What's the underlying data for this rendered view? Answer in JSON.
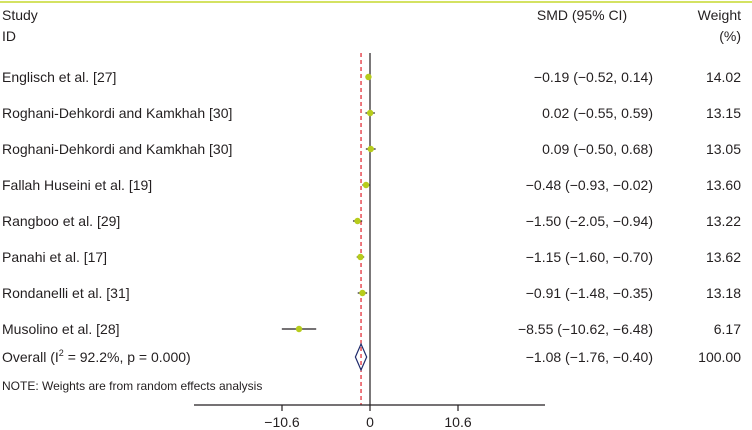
{
  "chart_data": {
    "type": "forest",
    "headers": {
      "study_line1": "Study",
      "study_line2": "ID",
      "effect": "SMD (95% CI)",
      "weight_line1": "Weight",
      "weight_line2": "(%)"
    },
    "studies": [
      {
        "label": "Englisch et al. [27]",
        "smd": -0.19,
        "lo": -0.52,
        "hi": 0.14,
        "ci_text": "−0.19 (−0.52, 0.14)",
        "weight": "14.02"
      },
      {
        "label": "Roghani-Dehkordi and Kamkhah [30]",
        "smd": 0.02,
        "lo": -0.55,
        "hi": 0.59,
        "ci_text": "0.02 (−0.55, 0.59)",
        "weight": "13.15"
      },
      {
        "label": "Roghani-Dehkordi and Kamkhah [30]",
        "smd": 0.09,
        "lo": -0.5,
        "hi": 0.68,
        "ci_text": "0.09 (−0.50, 0.68)",
        "weight": "13.05"
      },
      {
        "label": "Fallah Huseini et al. [19]",
        "smd": -0.48,
        "lo": -0.93,
        "hi": -0.02,
        "ci_text": "−0.48 (−0.93, −0.02)",
        "weight": "13.60"
      },
      {
        "label": "Rangboo et al. [29]",
        "smd": -1.5,
        "lo": -2.05,
        "hi": -0.94,
        "ci_text": "−1.50 (−2.05, −0.94)",
        "weight": "13.22"
      },
      {
        "label": "Panahi et al. [17]",
        "smd": -1.15,
        "lo": -1.6,
        "hi": -0.7,
        "ci_text": "−1.15 (−1.60, −0.70)",
        "weight": "13.62"
      },
      {
        "label": "Rondanelli et al. [31]",
        "smd": -0.91,
        "lo": -1.48,
        "hi": -0.35,
        "ci_text": "−0.91 (−1.48, −0.35)",
        "weight": "13.18"
      },
      {
        "label": "Musolino et al. [28]",
        "smd": -8.55,
        "lo": -10.62,
        "hi": -6.48,
        "ci_text": "−8.55 (−10.62, −6.48)",
        "weight": "6.17"
      }
    ],
    "overall": {
      "label_prefix": "Overall (I",
      "label_sup": "2",
      "label_suffix": " = 92.2%, p = 0.000)",
      "smd": -1.08,
      "lo": -1.76,
      "hi": -0.4,
      "ci_text": "−1.08 (−1.76, −0.40)",
      "weight": "100.00"
    },
    "note": "NOTE: Weights are from random effects analysis",
    "x_ticks": [
      {
        "value": -10.6,
        "label": "−10.6"
      },
      {
        "value": 0,
        "label": "0"
      },
      {
        "value": 10.6,
        "label": "10.6"
      }
    ],
    "xlim": [
      -10.6,
      10.6
    ],
    "colors": {
      "top_rule": "#c5d82e",
      "marker": "#b7cc1c",
      "pooled_line": "#e0202a",
      "diamond": "#1f2a6b",
      "axis": "#231f20"
    }
  }
}
